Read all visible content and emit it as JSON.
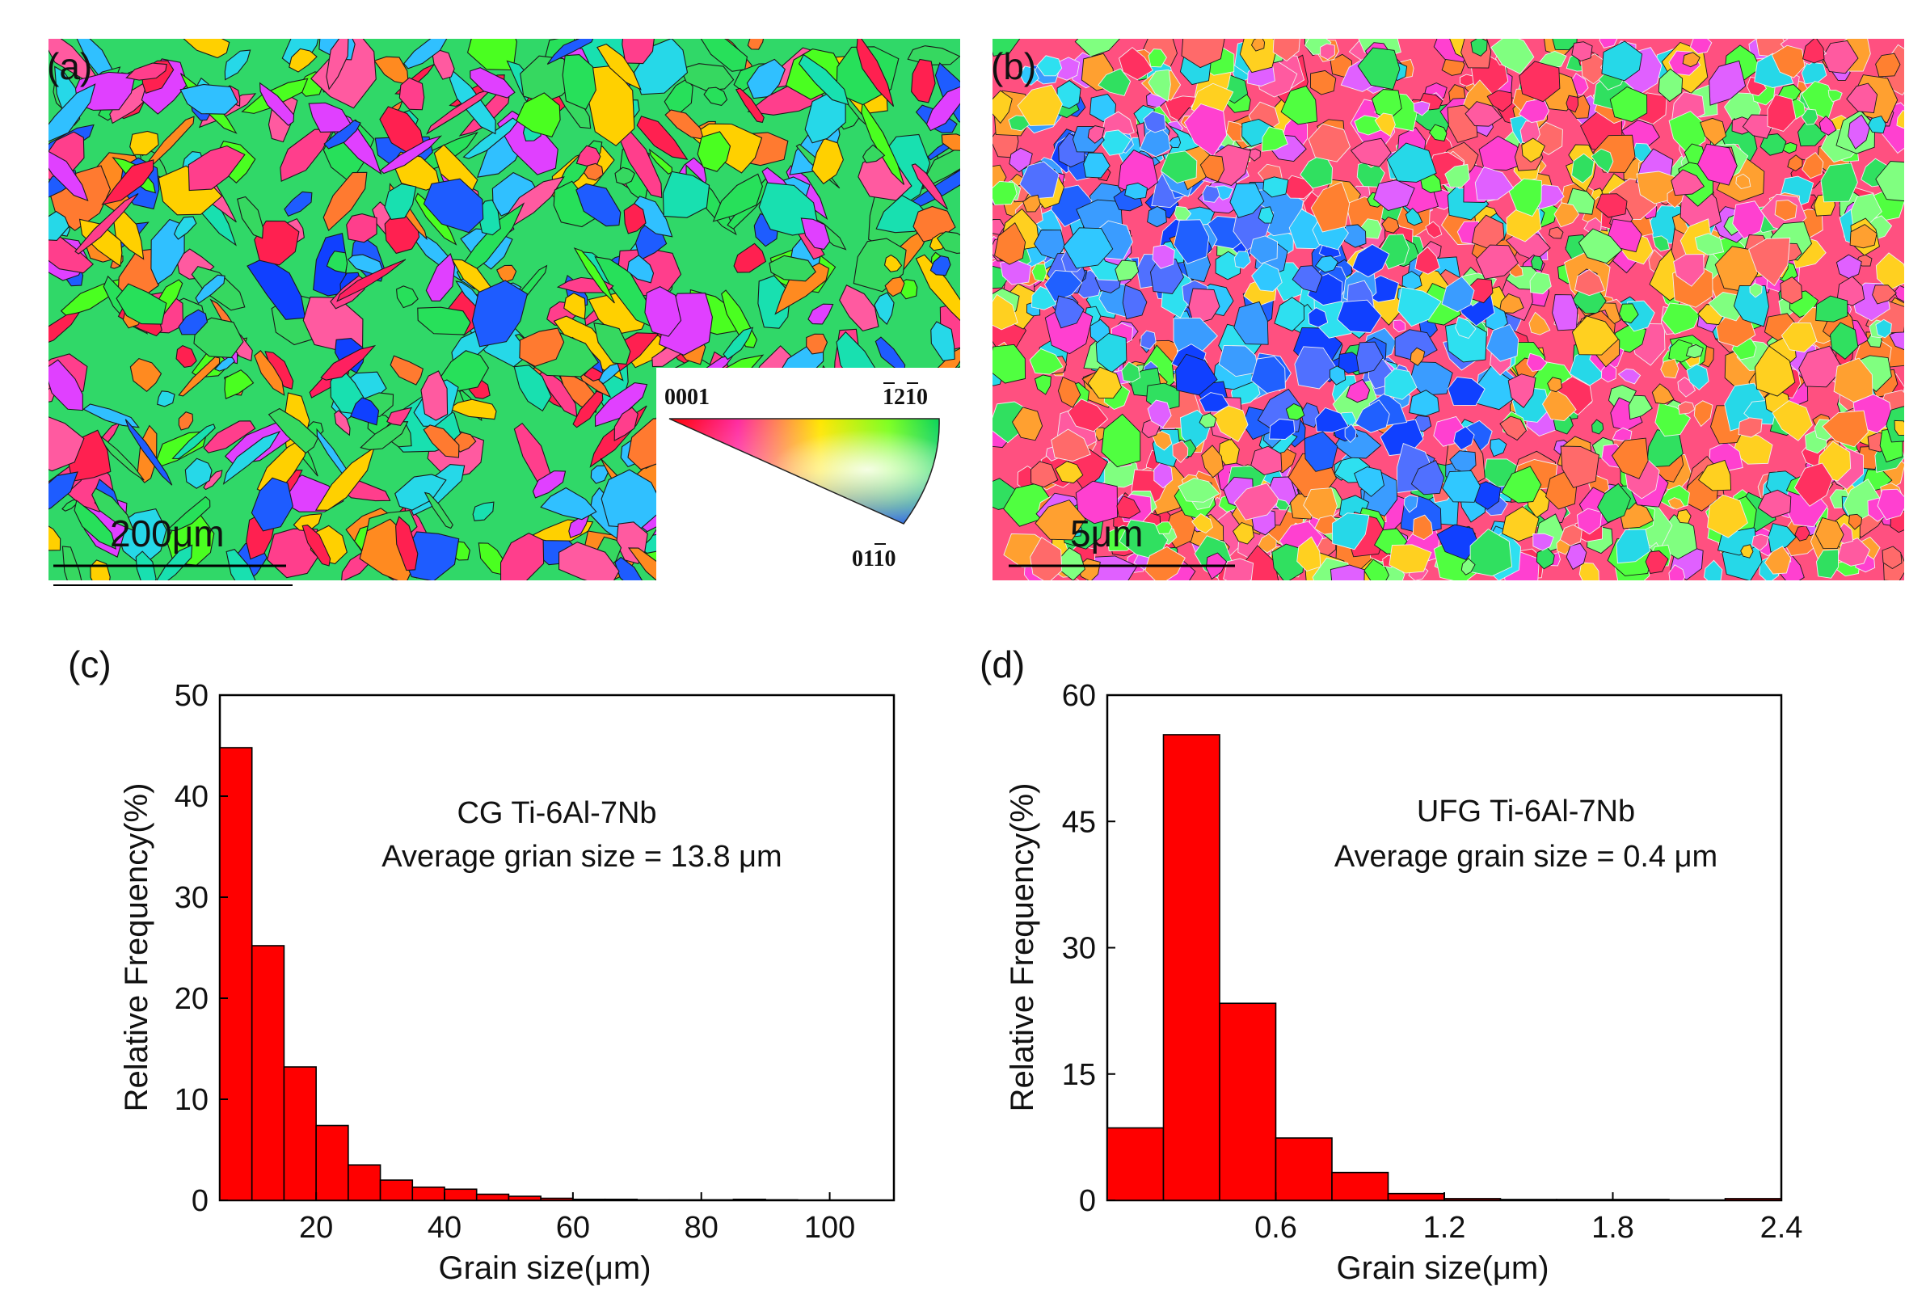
{
  "panels": {
    "a": {
      "label": "(a)",
      "scale_bar_label": "200μm",
      "legend": {
        "label_0001": "0001",
        "label_1210": "1210",
        "label_0110": "0110"
      }
    },
    "b": {
      "label": "(b)",
      "scale_bar_label": "5μm"
    }
  },
  "chart_data": [
    {
      "panel_label": "(c)",
      "type": "bar",
      "title_line1": "CG Ti-6Al-7Nb",
      "title_line2": "Average grian size = 13.8 μm",
      "xlabel": "Grain size(μm)",
      "ylabel": "Relative Frequency(%)",
      "xlim": [
        5,
        110
      ],
      "ylim": [
        0,
        50
      ],
      "xticks": [
        20,
        40,
        60,
        80,
        100
      ],
      "yticks": [
        0,
        10,
        20,
        30,
        40,
        50
      ],
      "bin_edges": [
        5,
        10,
        15,
        20,
        25,
        30,
        35,
        40,
        45,
        50,
        55,
        60,
        65,
        70,
        75,
        80,
        85,
        90,
        95,
        100,
        105,
        110
      ],
      "values": [
        44.8,
        25.2,
        13.2,
        7.4,
        3.5,
        2.0,
        1.3,
        1.1,
        0.6,
        0.4,
        0.2,
        0.1,
        0.1,
        0.05,
        0.05,
        0.05,
        0.1,
        0.05,
        0.0,
        0.0,
        0.0
      ],
      "bar_color": "#ff0000"
    },
    {
      "panel_label": "(d)",
      "type": "bar",
      "title_line1": "UFG Ti-6Al-7Nb",
      "title_line2": "Average grain size = 0.4 μm",
      "xlabel": "Grain size(μm)",
      "ylabel": "Relative Frequency(%)",
      "xlim": [
        0.0,
        2.4
      ],
      "ylim": [
        0,
        60
      ],
      "xticks": [
        0.6,
        1.2,
        1.8,
        2.4
      ],
      "yticks": [
        0,
        15,
        30,
        45,
        60
      ],
      "bin_edges": [
        0.0,
        0.2,
        0.4,
        0.6,
        0.8,
        1.0,
        1.2,
        1.4,
        1.6,
        1.8,
        2.0,
        2.2,
        2.4
      ],
      "values": [
        8.6,
        55.3,
        23.4,
        7.4,
        3.3,
        0.8,
        0.2,
        0.1,
        0.1,
        0.1,
        0.0,
        0.2
      ],
      "bar_color": "#ff0000"
    }
  ]
}
